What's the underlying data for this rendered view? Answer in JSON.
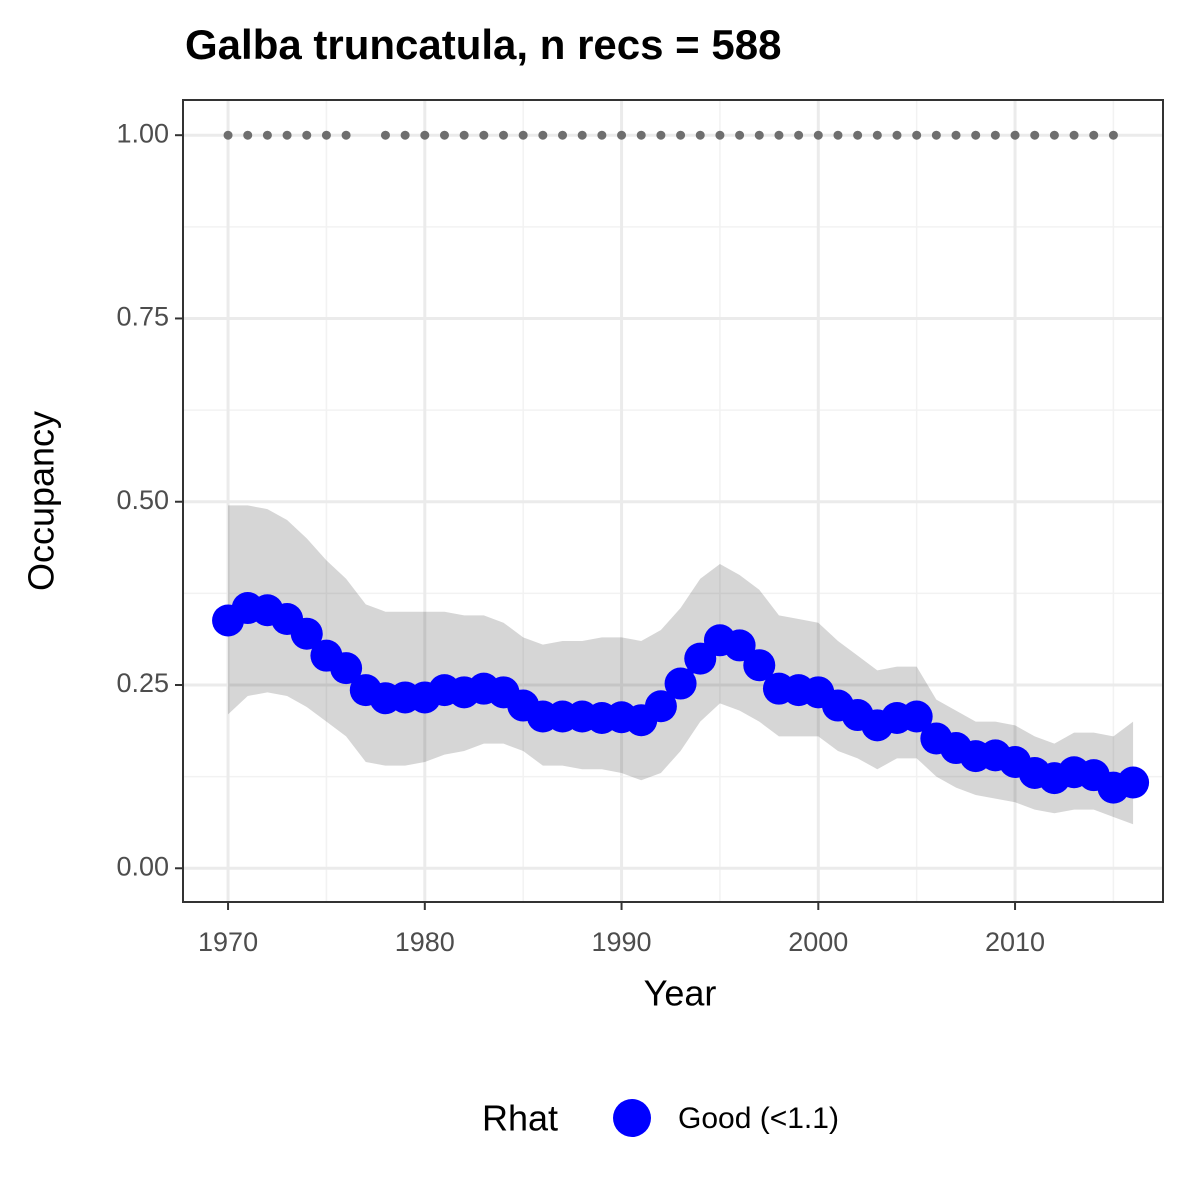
{
  "chart_data": {
    "type": "line",
    "title": "Galba truncatula, n recs = 588",
    "x_label": "Year",
    "y_label": "Occupancy",
    "x": [
      1970,
      1971,
      1972,
      1973,
      1974,
      1975,
      1976,
      1977,
      1978,
      1979,
      1980,
      1981,
      1982,
      1983,
      1984,
      1985,
      1986,
      1987,
      1988,
      1989,
      1990,
      1991,
      1992,
      1993,
      1994,
      1995,
      1996,
      1997,
      1998,
      1999,
      2000,
      2001,
      2002,
      2003,
      2004,
      2005,
      2006,
      2007,
      2008,
      2009,
      2010,
      2011,
      2012,
      2013,
      2014,
      2015,
      2016
    ],
    "series": [
      {
        "name": "Good (<1.1)",
        "color": "#0000ff",
        "values": [
          0.338,
          0.355,
          0.352,
          0.34,
          0.32,
          0.29,
          0.273,
          0.243,
          0.232,
          0.233,
          0.233,
          0.243,
          0.24,
          0.245,
          0.24,
          0.222,
          0.207,
          0.207,
          0.207,
          0.205,
          0.206,
          0.202,
          0.221,
          0.252,
          0.286,
          0.311,
          0.304,
          0.277,
          0.245,
          0.243,
          0.24,
          0.222,
          0.209,
          0.195,
          0.205,
          0.207,
          0.177,
          0.164,
          0.153,
          0.154,
          0.145,
          0.13,
          0.123,
          0.131,
          0.127,
          0.11,
          0.117
        ],
        "upper": [
          0.495,
          0.495,
          0.49,
          0.475,
          0.45,
          0.42,
          0.395,
          0.36,
          0.35,
          0.35,
          0.35,
          0.35,
          0.345,
          0.345,
          0.335,
          0.315,
          0.305,
          0.31,
          0.31,
          0.315,
          0.315,
          0.31,
          0.325,
          0.355,
          0.395,
          0.415,
          0.4,
          0.38,
          0.345,
          0.34,
          0.335,
          0.31,
          0.29,
          0.27,
          0.275,
          0.275,
          0.23,
          0.215,
          0.2,
          0.2,
          0.195,
          0.18,
          0.17,
          0.185,
          0.185,
          0.18,
          0.2
        ],
        "lower": [
          0.21,
          0.235,
          0.24,
          0.235,
          0.22,
          0.2,
          0.18,
          0.145,
          0.14,
          0.14,
          0.145,
          0.155,
          0.16,
          0.17,
          0.17,
          0.16,
          0.14,
          0.14,
          0.135,
          0.135,
          0.13,
          0.12,
          0.13,
          0.16,
          0.2,
          0.225,
          0.215,
          0.2,
          0.18,
          0.18,
          0.18,
          0.16,
          0.15,
          0.135,
          0.15,
          0.15,
          0.125,
          0.11,
          0.1,
          0.095,
          0.09,
          0.08,
          0.075,
          0.08,
          0.08,
          0.07,
          0.06
        ]
      }
    ],
    "detections": {
      "color": "#6e6e6e",
      "x": [
        1970,
        1971,
        1972,
        1973,
        1974,
        1975,
        1976,
        1978,
        1979,
        1980,
        1981,
        1982,
        1983,
        1984,
        1985,
        1986,
        1987,
        1988,
        1989,
        1990,
        1991,
        1992,
        1993,
        1994,
        1995,
        1996,
        1997,
        1998,
        1999,
        2000,
        2001,
        2002,
        2003,
        2004,
        2005,
        2006,
        2007,
        2008,
        2009,
        2010,
        2011,
        2012,
        2013,
        2014,
        2015
      ],
      "values": [
        1,
        1,
        1,
        1,
        1,
        1,
        1,
        1,
        1,
        1,
        1,
        1,
        1,
        1,
        1,
        1,
        1,
        1,
        1,
        1,
        1,
        1,
        1,
        1,
        1,
        1,
        1,
        1,
        1,
        1,
        1,
        1,
        1,
        1,
        1,
        1,
        1,
        1,
        1,
        1,
        1,
        1,
        1,
        1,
        1
      ]
    },
    "ribbon_color": "#000000",
    "xlim": [
      1967.71,
      2017.52
    ],
    "xticks": [
      1970,
      1980,
      1990,
      2000,
      2010
    ],
    "ylim": [
      -0.046,
      1.048
    ],
    "yticks": [
      {
        "value": 0,
        "label": "0.00"
      },
      {
        "value": 0.25,
        "label": "0.25"
      },
      {
        "value": 0.5,
        "label": "0.50"
      },
      {
        "value": 0.75,
        "label": "0.75"
      },
      {
        "value": 1,
        "label": "1.00"
      }
    ],
    "grid": true,
    "legend_title": "Rhat",
    "legend_position": "bottom"
  }
}
